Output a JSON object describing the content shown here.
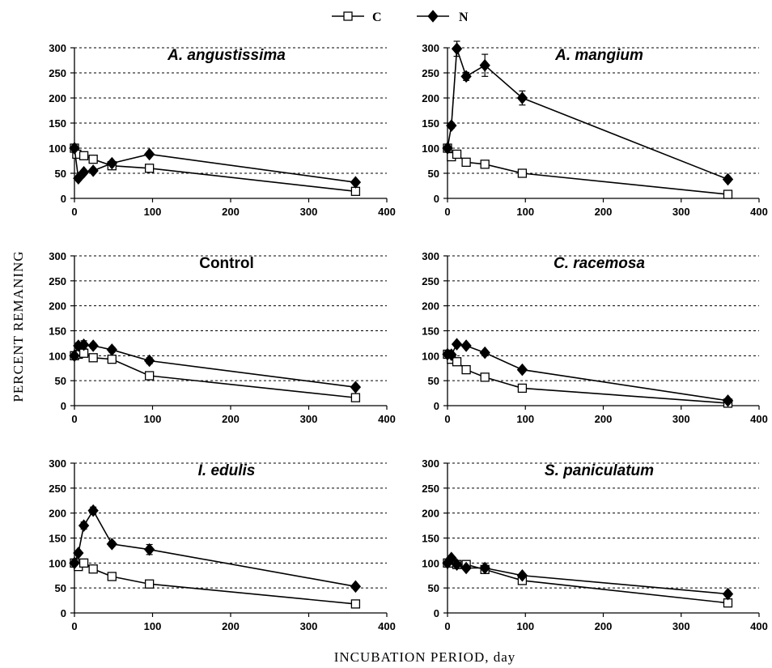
{
  "legend": {
    "items": [
      {
        "label": "C",
        "marker": "open-square"
      },
      {
        "label": "N",
        "marker": "filled-diamond"
      }
    ]
  },
  "xlabel": "INCUBATION PERIOD, day",
  "ylabel": "PERCENT REMANING",
  "colors": {
    "line": "#000000",
    "grid": "#000000",
    "background": "#ffffff"
  },
  "chart_data": [
    {
      "type": "line",
      "title": "A. angustissima",
      "italic": true,
      "xlim": [
        0,
        400
      ],
      "ylim": [
        0,
        300
      ],
      "xticks": [
        0,
        100,
        200,
        300,
        400
      ],
      "yticks": [
        0,
        50,
        100,
        150,
        200,
        250,
        300
      ],
      "grid": "y-dashed",
      "series": [
        {
          "name": "C",
          "marker": "square",
          "points": [
            [
              0,
              100
            ],
            [
              3,
              88
            ],
            [
              12,
              85
            ],
            [
              24,
              78
            ],
            [
              48,
              65
            ],
            [
              96,
              60
            ],
            [
              360,
              14
            ]
          ]
        },
        {
          "name": "N",
          "marker": "diamond",
          "points": [
            [
              0,
              100
            ],
            [
              5,
              40
            ],
            [
              12,
              52
            ],
            [
              24,
              55
            ],
            [
              48,
              70
            ],
            [
              96,
              88
            ],
            [
              360,
              32
            ]
          ]
        }
      ]
    },
    {
      "type": "line",
      "title": "A. mangium",
      "italic": true,
      "xlim": [
        0,
        400
      ],
      "ylim": [
        0,
        300
      ],
      "xticks": [
        0,
        100,
        200,
        300,
        400
      ],
      "yticks": [
        0,
        50,
        100,
        150,
        200,
        250,
        300
      ],
      "grid": "y-dashed",
      "series": [
        {
          "name": "C",
          "marker": "square",
          "points": [
            [
              0,
              100
            ],
            [
              5,
              83
            ],
            [
              12,
              88
            ],
            [
              24,
              72
            ],
            [
              48,
              68
            ],
            [
              96,
              50
            ],
            [
              360,
              8
            ]
          ]
        },
        {
          "name": "N",
          "marker": "diamond",
          "points": [
            [
              0,
              100
            ],
            [
              5,
              145
            ],
            [
              12,
              298
            ],
            [
              24,
              243
            ],
            [
              48,
              265
            ],
            [
              96,
              200
            ],
            [
              360,
              38
            ]
          ],
          "error": [
            0,
            5,
            15,
            8,
            22,
            14,
            4
          ]
        }
      ]
    },
    {
      "type": "line",
      "title": "Control",
      "italic": false,
      "xlim": [
        0,
        400
      ],
      "ylim": [
        0,
        300
      ],
      "xticks": [
        0,
        100,
        200,
        300,
        400
      ],
      "yticks": [
        0,
        50,
        100,
        150,
        200,
        250,
        300
      ],
      "grid": "y-dashed",
      "series": [
        {
          "name": "C",
          "marker": "square",
          "points": [
            [
              0,
              100
            ],
            [
              5,
              103
            ],
            [
              12,
              105
            ],
            [
              24,
              96
            ],
            [
              48,
              93
            ],
            [
              96,
              60
            ],
            [
              360,
              16
            ]
          ]
        },
        {
          "name": "N",
          "marker": "diamond",
          "points": [
            [
              0,
              100
            ],
            [
              5,
              120
            ],
            [
              12,
              122
            ],
            [
              24,
              120
            ],
            [
              48,
              112
            ],
            [
              96,
              90
            ],
            [
              360,
              37
            ]
          ],
          "error": [
            0,
            6,
            8,
            5,
            5,
            6,
            4
          ]
        }
      ]
    },
    {
      "type": "line",
      "title": "C. racemosa",
      "italic": true,
      "xlim": [
        0,
        400
      ],
      "ylim": [
        0,
        300
      ],
      "xticks": [
        0,
        100,
        200,
        300,
        400
      ],
      "yticks": [
        0,
        50,
        100,
        150,
        200,
        250,
        300
      ],
      "grid": "y-dashed",
      "series": [
        {
          "name": "C",
          "marker": "square",
          "points": [
            [
              0,
              103
            ],
            [
              5,
              93
            ],
            [
              12,
              88
            ],
            [
              24,
              72
            ],
            [
              48,
              57
            ],
            [
              96,
              35
            ],
            [
              360,
              5
            ]
          ]
        },
        {
          "name": "N",
          "marker": "diamond",
          "points": [
            [
              0,
              103
            ],
            [
              5,
              102
            ],
            [
              12,
              123
            ],
            [
              24,
              120
            ],
            [
              48,
              106
            ],
            [
              96,
              72
            ],
            [
              360,
              10
            ]
          ]
        }
      ]
    },
    {
      "type": "line",
      "title": "I. edulis",
      "italic": true,
      "xlim": [
        0,
        400
      ],
      "ylim": [
        0,
        300
      ],
      "xticks": [
        0,
        100,
        200,
        300,
        400
      ],
      "yticks": [
        0,
        50,
        100,
        150,
        200,
        250,
        300
      ],
      "grid": "y-dashed",
      "series": [
        {
          "name": "C",
          "marker": "square",
          "points": [
            [
              0,
              100
            ],
            [
              5,
              93
            ],
            [
              12,
              100
            ],
            [
              24,
              88
            ],
            [
              48,
              73
            ],
            [
              96,
              58
            ],
            [
              360,
              18
            ]
          ]
        },
        {
          "name": "N",
          "marker": "diamond",
          "points": [
            [
              0,
              100
            ],
            [
              5,
              120
            ],
            [
              12,
              175
            ],
            [
              24,
              205
            ],
            [
              48,
              138
            ],
            [
              96,
              127
            ],
            [
              360,
              53
            ]
          ],
          "error": [
            0,
            4,
            7,
            7,
            5,
            10,
            3
          ]
        }
      ]
    },
    {
      "type": "line",
      "title": "S. paniculatum",
      "italic": true,
      "xlim": [
        0,
        400
      ],
      "ylim": [
        0,
        300
      ],
      "xticks": [
        0,
        100,
        200,
        300,
        400
      ],
      "yticks": [
        0,
        50,
        100,
        150,
        200,
        250,
        300
      ],
      "grid": "y-dashed",
      "series": [
        {
          "name": "C",
          "marker": "square",
          "points": [
            [
              0,
              100
            ],
            [
              5,
              100
            ],
            [
              12,
              97
            ],
            [
              24,
              97
            ],
            [
              48,
              87
            ],
            [
              96,
              65
            ],
            [
              360,
              20
            ]
          ]
        },
        {
          "name": "N",
          "marker": "diamond",
          "points": [
            [
              0,
              100
            ],
            [
              5,
              110
            ],
            [
              12,
              97
            ],
            [
              24,
              90
            ],
            [
              48,
              90
            ],
            [
              96,
              75
            ],
            [
              360,
              38
            ]
          ]
        }
      ]
    }
  ]
}
